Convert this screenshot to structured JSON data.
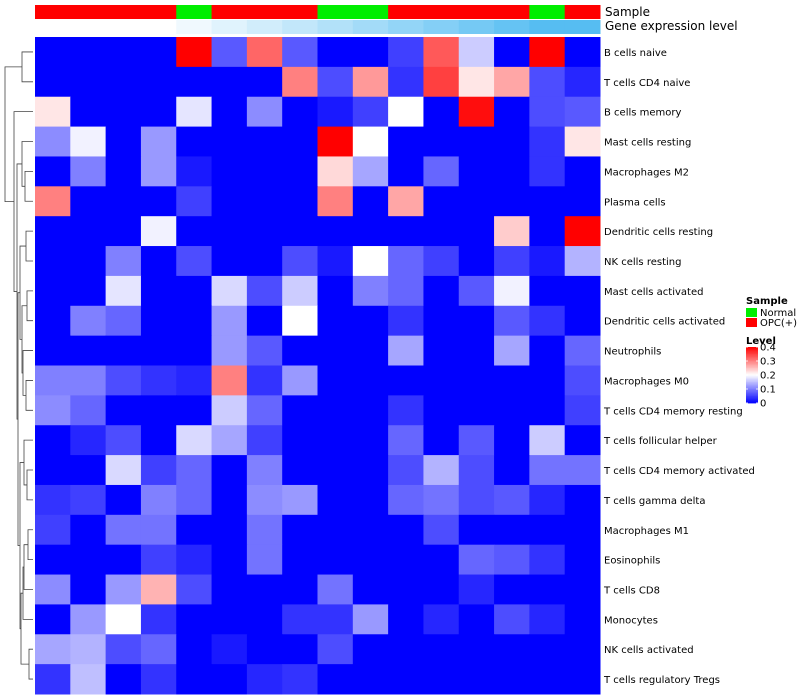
{
  "chart_data": {
    "type": "heatmap",
    "annotations": [
      {
        "name": "Sample"
      },
      {
        "name": "Gene expression level"
      }
    ],
    "sample_groups": [
      "OPC(+)",
      "OPC(+)",
      "OPC(+)",
      "OPC(+)",
      "Normal",
      "OPC(+)",
      "OPC(+)",
      "OPC(+)",
      "Normal",
      "Normal",
      "OPC(+)",
      "OPC(+)",
      "OPC(+)",
      "OPC(+)",
      "Normal",
      "OPC(+)"
    ],
    "gene_expression_levels": [
      1,
      1,
      1,
      1,
      2,
      3,
      4,
      5,
      6,
      7,
      8,
      9,
      10,
      11,
      12,
      12
    ],
    "rows": [
      "B cells naive",
      "T cells CD4 naive",
      "B cells memory",
      "Mast cells resting",
      "Macrophages M2",
      "Plasma cells",
      "Dendritic cells resting",
      "NK cells resting",
      "Mast cells activated",
      "Dendritic cells activated",
      "Neutrophils",
      "Macrophages M0",
      "T cells CD4 memory resting",
      "T cells follicular helper",
      "T cells CD4 memory activated",
      "T cells gamma delta",
      "Macrophages M1",
      "Eosinophils",
      "T cells CD8",
      "Monocytes",
      "NK cells activated",
      "T cells regulatory  Tregs"
    ],
    "values": [
      [
        0,
        0,
        0,
        0,
        0.4,
        0.07,
        0.32,
        0.07,
        0,
        0,
        0.05,
        0.33,
        0.16,
        0,
        0.4,
        0
      ],
      [
        0,
        0,
        0,
        0,
        0,
        0,
        0,
        0.3,
        0.06,
        0.28,
        0.04,
        0.35,
        0.22,
        0.27,
        0.06,
        0.03
      ],
      [
        0.22,
        0,
        0,
        0,
        0.18,
        0,
        0.11,
        0,
        0.02,
        0.05,
        0.2,
        0,
        0.39,
        0,
        0.06,
        0.07
      ],
      [
        0.11,
        0.19,
        0,
        0.12,
        0,
        0,
        0,
        0,
        0.4,
        0.2,
        0,
        0,
        0,
        0,
        0.04,
        0.22
      ],
      [
        0,
        0.1,
        0,
        0.12,
        0.02,
        0,
        0,
        0,
        0.23,
        0.13,
        0,
        0.08,
        0,
        0,
        0.04,
        0
      ],
      [
        0.3,
        0,
        0,
        0,
        0.05,
        0,
        0,
        0,
        0.3,
        0,
        0.27,
        0,
        0,
        0,
        0,
        0
      ],
      [
        0,
        0,
        0,
        0.19,
        0,
        0,
        0,
        0,
        0,
        0,
        0,
        0,
        0,
        0.24,
        0,
        0.4
      ],
      [
        0,
        0,
        0.1,
        0,
        0.06,
        0,
        0,
        0.06,
        0.02,
        0.2,
        0.08,
        0.05,
        0,
        0.05,
        0.02,
        0.14
      ],
      [
        0,
        0,
        0.18,
        0,
        0,
        0.17,
        0.06,
        0.16,
        0,
        0.1,
        0.08,
        0,
        0.07,
        0.19,
        0,
        0
      ],
      [
        0,
        0.1,
        0.08,
        0,
        0,
        0.12,
        0,
        0.2,
        0,
        0,
        0.04,
        0,
        0,
        0.07,
        0.04,
        0
      ],
      [
        0,
        0,
        0,
        0,
        0,
        0.12,
        0.07,
        0,
        0,
        0,
        0.13,
        0,
        0,
        0.13,
        0,
        0.08
      ],
      [
        0.1,
        0.1,
        0.06,
        0.04,
        0.03,
        0.3,
        0.04,
        0.12,
        0,
        0,
        0,
        0,
        0,
        0,
        0,
        0.06
      ],
      [
        0.11,
        0.08,
        0,
        0,
        0,
        0.16,
        0.08,
        0,
        0,
        0,
        0.04,
        0,
        0,
        0,
        0,
        0.05
      ],
      [
        0,
        0.03,
        0.06,
        0,
        0.17,
        0.13,
        0.05,
        0,
        0,
        0,
        0.08,
        0,
        0.07,
        0,
        0.16,
        0
      ],
      [
        0,
        0,
        0.17,
        0.05,
        0.08,
        0,
        0.1,
        0,
        0,
        0,
        0.06,
        0.14,
        0.06,
        0,
        0.09,
        0.09
      ],
      [
        0.04,
        0.05,
        0,
        0.1,
        0.08,
        0,
        0.11,
        0.12,
        0,
        0,
        0.08,
        0.09,
        0.06,
        0.07,
        0.03,
        0
      ],
      [
        0.05,
        0,
        0.09,
        0.09,
        0,
        0,
        0.09,
        0,
        0,
        0,
        0,
        0.06,
        0,
        0,
        0,
        0
      ],
      [
        0,
        0,
        0,
        0.05,
        0.03,
        0,
        0.09,
        0,
        0,
        0,
        0,
        0,
        0.08,
        0.07,
        0.04,
        0
      ],
      [
        0.11,
        0,
        0.12,
        0.26,
        0.06,
        0,
        0,
        0,
        0.09,
        0,
        0,
        0,
        0.03,
        0,
        0,
        0
      ],
      [
        0,
        0.12,
        0.2,
        0.04,
        0,
        0,
        0,
        0.04,
        0.04,
        0.12,
        0,
        0.03,
        0,
        0.06,
        0.03,
        0
      ],
      [
        0.13,
        0.14,
        0.06,
        0.08,
        0,
        0.02,
        0,
        0,
        0.06,
        0,
        0,
        0,
        0,
        0,
        0,
        0
      ],
      [
        0.04,
        0.15,
        0,
        0.04,
        0,
        0,
        0.03,
        0.04,
        0,
        0,
        0,
        0,
        0,
        0,
        0,
        0
      ]
    ],
    "legend": {
      "sample": {
        "title": "Sample",
        "items": [
          {
            "label": "Normal",
            "color": "#00ee00"
          },
          {
            "label": "OPC(+)",
            "color": "#ff0000"
          }
        ]
      },
      "level": {
        "title": "Level",
        "ticks": [
          "0.4",
          "0.3",
          "0.2",
          "0.1",
          "0"
        ],
        "tick_values": [
          0.4,
          0.3,
          0.2,
          0.1,
          0
        ],
        "range": [
          0,
          0.4
        ]
      }
    },
    "colors": {
      "low": "#0000ff",
      "mid": "#ffffff",
      "high": "#ff0000",
      "normal": "#00ee00",
      "opc": "#ff0000"
    }
  }
}
